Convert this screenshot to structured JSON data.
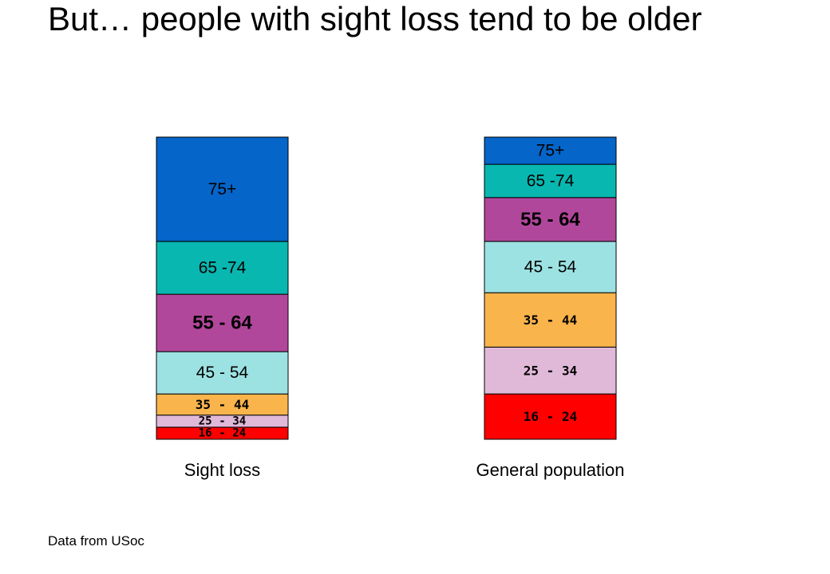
{
  "slide": {
    "title": "But… people with sight loss tend to be older",
    "source_note": "Data from USoc"
  },
  "chart_data": {
    "type": "bar",
    "stacked": true,
    "normalized": true,
    "title": "",
    "xlabel": "",
    "ylabel": "",
    "ylim": [
      0,
      100
    ],
    "categories": [
      "Sight loss",
      "General population"
    ],
    "series": [
      {
        "name": "16 - 24",
        "color": "#ff0000",
        "values": [
          4,
          15
        ]
      },
      {
        "name": "25 - 34",
        "color": "#e0b8d8",
        "values": [
          4,
          15.5
        ]
      },
      {
        "name": "35 - 44",
        "color": "#f9b44c",
        "values": [
          7,
          18
        ]
      },
      {
        "name": "45 - 54",
        "color": "#9de2e2",
        "values": [
          14,
          17
        ]
      },
      {
        "name": "55 - 64",
        "color": "#b1479b",
        "values": [
          19,
          14.5
        ]
      },
      {
        "name": "65 -74",
        "color": "#08b7b0",
        "values": [
          17.5,
          11
        ]
      },
      {
        "name": "75+",
        "color": "#0565c9",
        "values": [
          34.5,
          9
        ]
      }
    ]
  }
}
